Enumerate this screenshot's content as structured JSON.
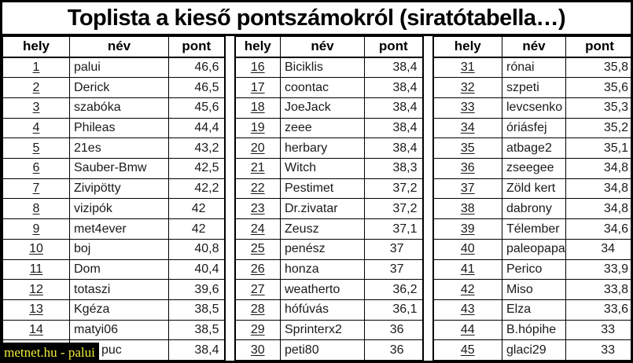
{
  "title": "Toplista a kieső pontszámokról (siratótabella…)",
  "columns": {
    "place": "hely",
    "name": "név",
    "points": "pont"
  },
  "groups": [
    {
      "rows": [
        {
          "place": "1",
          "name": "palui",
          "points": "46,6"
        },
        {
          "place": "2",
          "name": "Derick",
          "points": "46,5"
        },
        {
          "place": "3",
          "name": "szabóka",
          "points": "45,6"
        },
        {
          "place": "4",
          "name": "Phileas",
          "points": "44,4"
        },
        {
          "place": "5",
          "name": "21es",
          "points": "43,2"
        },
        {
          "place": "6",
          "name": "Sauber-Bmw",
          "points": "42,5"
        },
        {
          "place": "7",
          "name": "Zivipötty",
          "points": "42,2"
        },
        {
          "place": "8",
          "name": "vizipók",
          "points": "42"
        },
        {
          "place": "9",
          "name": "met4ever",
          "points": "42"
        },
        {
          "place": "10",
          "name": "boj",
          "points": "40,8"
        },
        {
          "place": "11",
          "name": "Dom",
          "points": "40,4"
        },
        {
          "place": "12",
          "name": "totaszi",
          "points": "39,6"
        },
        {
          "place": "13",
          "name": "Kgéza",
          "points": "38,5"
        },
        {
          "place": "14",
          "name": "matyi06",
          "points": "38,5"
        },
        {
          "place": "",
          "name": "puc",
          "points": "38,4"
        }
      ]
    },
    {
      "rows": [
        {
          "place": "16",
          "name": "Biciklis",
          "points": "38,4"
        },
        {
          "place": "17",
          "name": "coontac",
          "points": "38,4"
        },
        {
          "place": "18",
          "name": "JoeJack",
          "points": "38,4"
        },
        {
          "place": "19",
          "name": "zeee",
          "points": "38,4"
        },
        {
          "place": "20",
          "name": "herbary",
          "points": "38,4"
        },
        {
          "place": "21",
          "name": "Witch",
          "points": "38,3"
        },
        {
          "place": "22",
          "name": "Pestimet",
          "points": "37,2"
        },
        {
          "place": "23",
          "name": "Dr.zivatar",
          "points": "37,2"
        },
        {
          "place": "24",
          "name": "Zeusz",
          "points": "37,1"
        },
        {
          "place": "25",
          "name": "penész",
          "points": "37"
        },
        {
          "place": "26",
          "name": "honza",
          "points": "37"
        },
        {
          "place": "27",
          "name": "weatherto",
          "points": "36,2"
        },
        {
          "place": "28",
          "name": "hófúvás",
          "points": "36,1"
        },
        {
          "place": "29",
          "name": "Sprinterx2",
          "points": "36"
        },
        {
          "place": "30",
          "name": "peti80",
          "points": "36"
        }
      ]
    },
    {
      "rows": [
        {
          "place": "31",
          "name": "rónai",
          "points": "35,8"
        },
        {
          "place": "32",
          "name": "szpeti",
          "points": "35,6"
        },
        {
          "place": "33",
          "name": "levcsenko",
          "points": "35,3"
        },
        {
          "place": "34",
          "name": "óriásfej",
          "points": "35,2"
        },
        {
          "place": "35",
          "name": "atbage2",
          "points": "35,1"
        },
        {
          "place": "36",
          "name": "zseegee",
          "points": "34,8"
        },
        {
          "place": "37",
          "name": "Zöld kert",
          "points": "34,8"
        },
        {
          "place": "38",
          "name": "dabrony",
          "points": "34,8"
        },
        {
          "place": "39",
          "name": "Télember",
          "points": "34,6"
        },
        {
          "place": "40",
          "name": "paleopapa",
          "points": "34"
        },
        {
          "place": "41",
          "name": "Perico",
          "points": "33,9"
        },
        {
          "place": "42",
          "name": "Miso",
          "points": "33,8"
        },
        {
          "place": "43",
          "name": "Elza",
          "points": "33,6"
        },
        {
          "place": "44",
          "name": "B.hópihe",
          "points": "33"
        },
        {
          "place": "45",
          "name": "glaci29",
          "points": "33"
        }
      ]
    }
  ],
  "watermark": {
    "text": "metnet.hu - palui",
    "text_color": "#f2ef3a",
    "bg_color": "#000000"
  },
  "colors": {
    "border": "#000000",
    "background": "#ffffff",
    "text": "#1a1a1a"
  }
}
